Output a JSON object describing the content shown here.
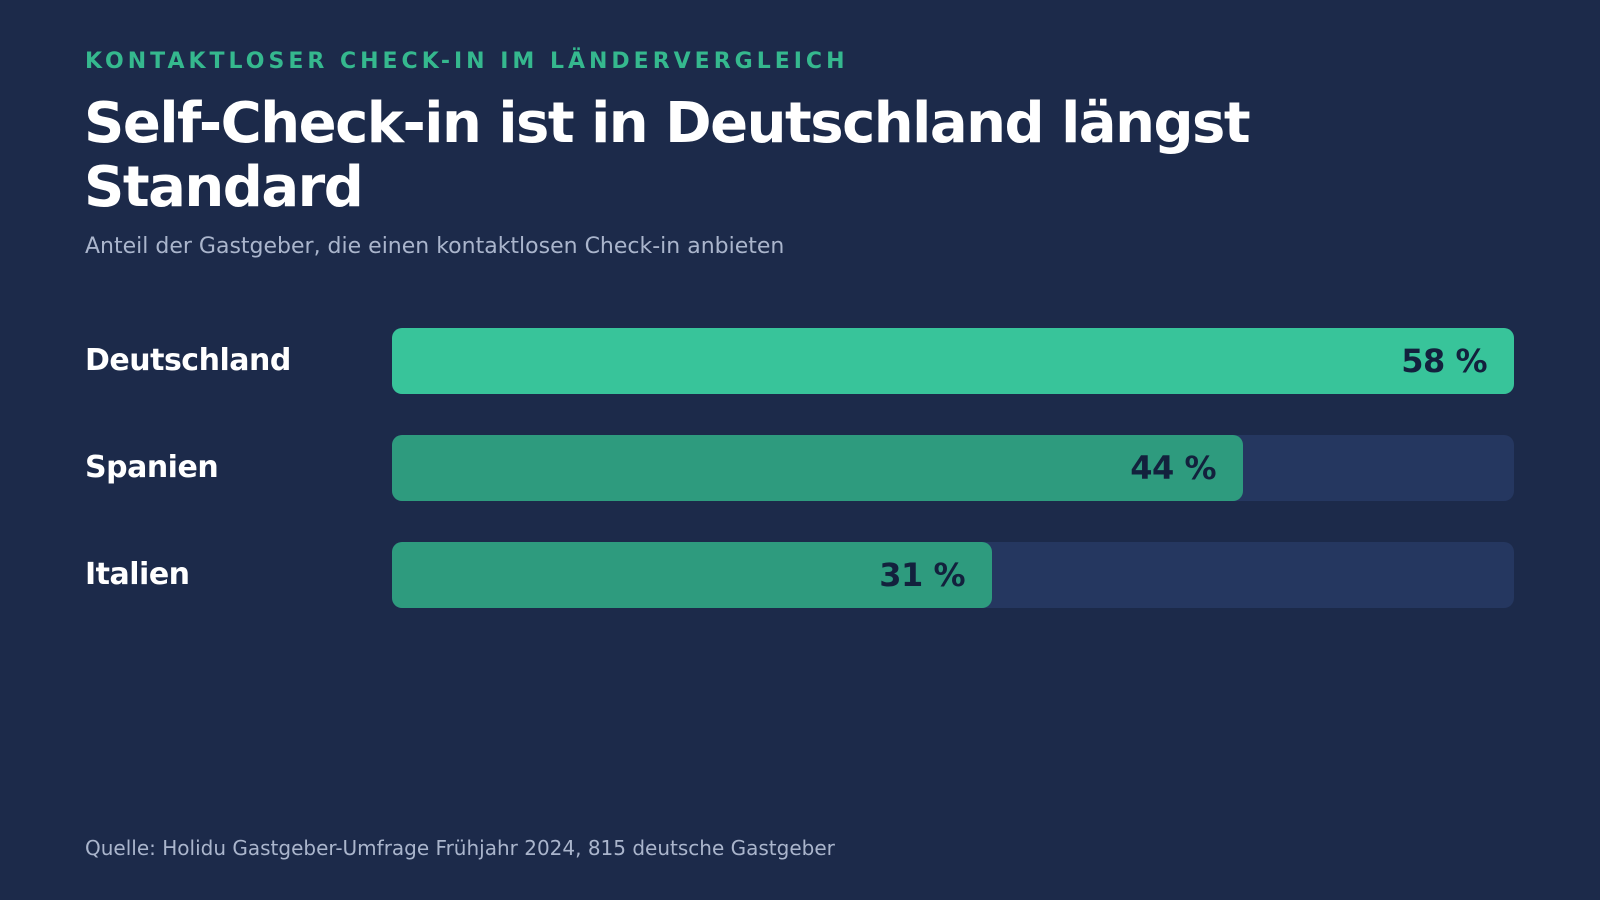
{
  "header": {
    "eyebrow": "KONTAKTLOSER CHECK-IN IM LÄNDERVERGLEICH",
    "title": "Self-Check-in ist in Deutschland längst Standard",
    "subtitle": "Anteil der Gastgeber, die einen kontaktlosen Check-in anbieten"
  },
  "footer": {
    "source": "Quelle: Holidu Gastgeber-Umfrage Frühjahr 2024, 815 deutsche Gastgeber"
  },
  "colors": {
    "background": "#1c2a4a",
    "accent": "#35b88e",
    "highlight_bar": "#38c49a",
    "bar": "#2e9b7e",
    "track": "#253760",
    "value_text": "#13213d"
  },
  "chart_data": {
    "type": "bar",
    "orientation": "horizontal",
    "title": "Self-Check-in ist in Deutschland längst Standard",
    "subtitle": "Anteil der Gastgeber, die einen kontaktlosen Check-in anbieten",
    "categories": [
      "Deutschland",
      "Spanien",
      "Italien"
    ],
    "values": [
      58,
      44,
      31
    ],
    "value_labels": [
      "58 %",
      "44 %",
      "31 %"
    ],
    "unit": "%",
    "xlim": [
      0,
      58
    ],
    "highlight_category": "Deutschland",
    "grid": false,
    "legend": "none"
  }
}
